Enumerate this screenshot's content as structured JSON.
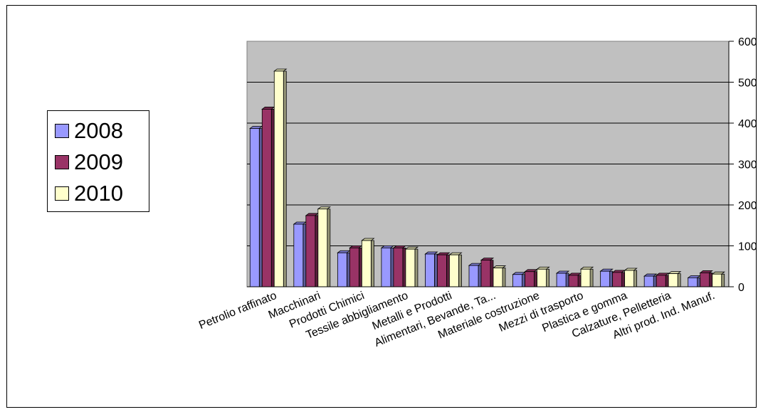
{
  "chart_data": {
    "type": "bar",
    "categories": [
      "Petrolio raffinato",
      "Macchinari",
      "Prodotti Chimici",
      "Tessile abbigliamento",
      "Metalli e Prodotti",
      "Alimentari, Bevande, Ta...",
      "Materiale costruzione",
      "Mezzi di trasporto",
      "Plastica e gomma",
      "Calzature, Pelletteria",
      "Altri prod. Ind. Manuf."
    ],
    "series": [
      {
        "name": "2008",
        "color": "#9999ff",
        "values": [
          387,
          153,
          83,
          95,
          80,
          52,
          30,
          33,
          38,
          26,
          22
        ]
      },
      {
        "name": "2009",
        "color": "#993366",
        "values": [
          434,
          174,
          95,
          95,
          78,
          65,
          37,
          28,
          35,
          28,
          34
        ]
      },
      {
        "name": "2010",
        "color": "#ffffcc",
        "values": [
          527,
          190,
          113,
          92,
          78,
          46,
          43,
          43,
          40,
          32,
          31
        ]
      }
    ],
    "ylim": [
      0,
      600
    ],
    "yticks": [
      0,
      100,
      200,
      300,
      400,
      500,
      600
    ],
    "y_tick_labels": [
      "0",
      "100",
      "200",
      "300",
      "400",
      "500",
      "600"
    ],
    "plot_background": "#c0c0c0",
    "grid": true,
    "y_axis_side": "right",
    "legend_position": "left",
    "title": "",
    "xlabel": "",
    "ylabel": ""
  }
}
